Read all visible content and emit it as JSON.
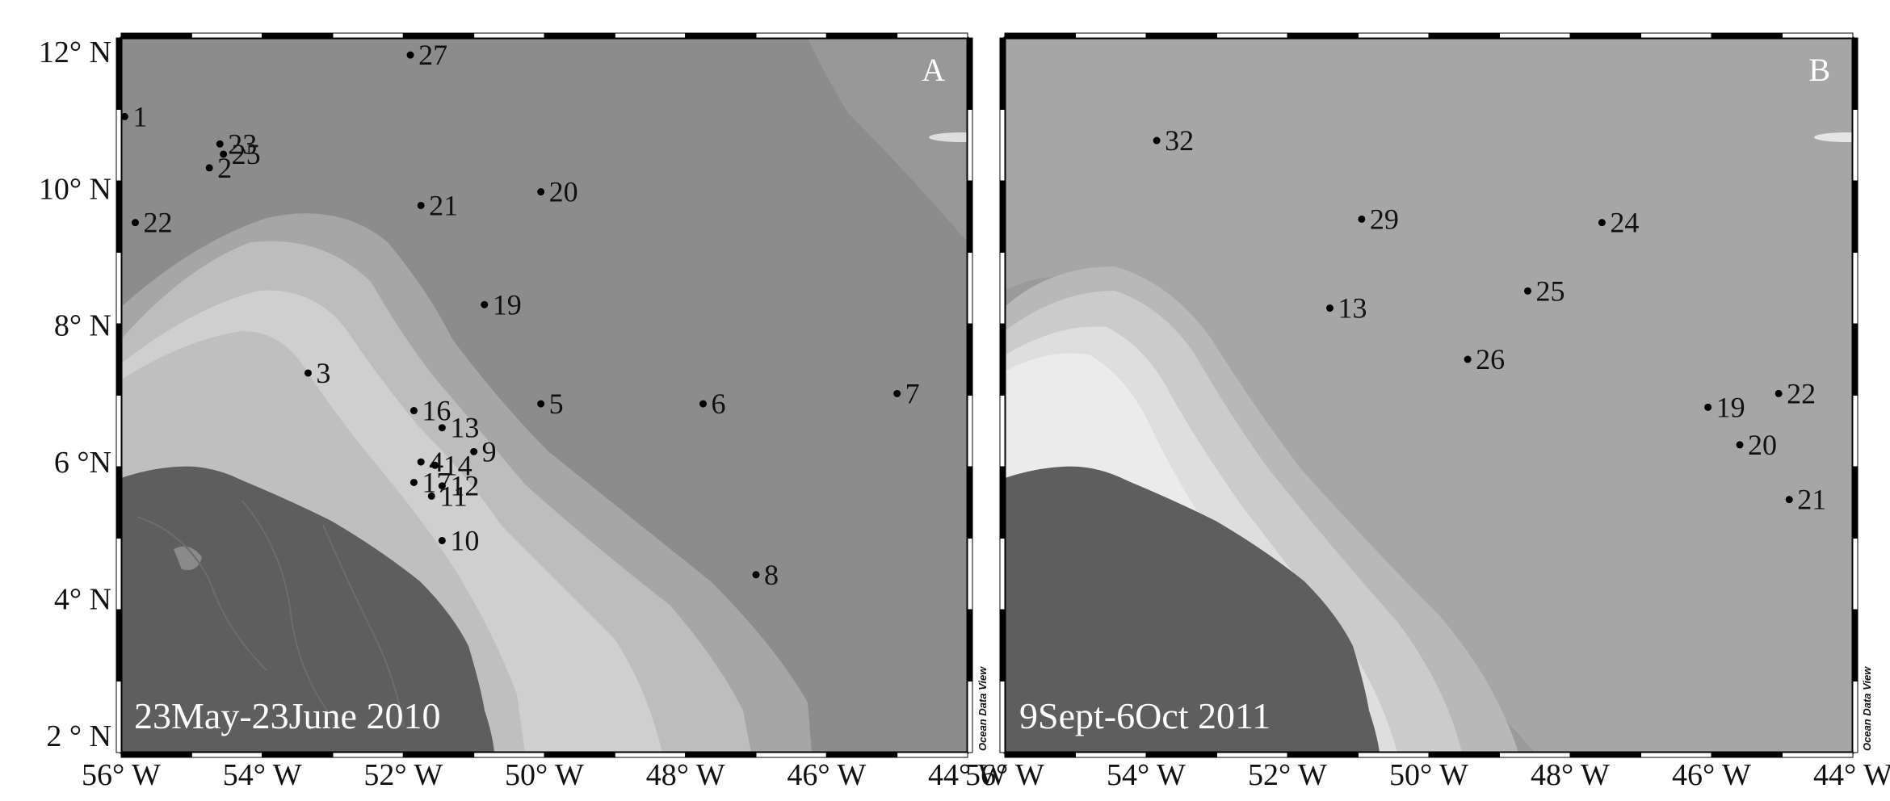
{
  "figure": {
    "x_ticks": [
      "56° W",
      "54° W",
      "52° W",
      "50° W",
      "48° W",
      "46° W",
      "44° W"
    ],
    "y_ticks": [
      "12° N",
      "10° N",
      "8° N",
      "6 °N",
      "4° N",
      "2 ° N"
    ],
    "watermark": "Ocean Data View"
  },
  "panels": [
    {
      "letter": "A",
      "date_label": "23May-23June 2010",
      "stations": [
        {
          "label": "1",
          "lon": -55.95,
          "lat": 11.05
        },
        {
          "label": "23",
          "lon": -54.6,
          "lat": 10.65
        },
        {
          "label": "25",
          "lon": -54.55,
          "lat": 10.5
        },
        {
          "label": "2",
          "lon": -54.75,
          "lat": 10.3
        },
        {
          "label": "22",
          "lon": -55.8,
          "lat": 9.5
        },
        {
          "label": "27",
          "lon": -51.9,
          "lat": 11.95
        },
        {
          "label": "21",
          "lon": -51.75,
          "lat": 9.75
        },
        {
          "label": "20",
          "lon": -50.05,
          "lat": 9.95
        },
        {
          "label": "19",
          "lon": -50.85,
          "lat": 8.3
        },
        {
          "label": "3",
          "lon": -53.35,
          "lat": 7.3
        },
        {
          "label": "16",
          "lon": -51.85,
          "lat": 6.75
        },
        {
          "label": "13",
          "lon": -51.45,
          "lat": 6.5
        },
        {
          "label": "5",
          "lon": -50.05,
          "lat": 6.85
        },
        {
          "label": "6",
          "lon": -47.75,
          "lat": 6.85
        },
        {
          "label": "7",
          "lon": -45.0,
          "lat": 7.0
        },
        {
          "label": "4",
          "lon": -51.75,
          "lat": 6.0
        },
        {
          "label": "14",
          "lon": -51.55,
          "lat": 5.95
        },
        {
          "label": "9",
          "lon": -51.0,
          "lat": 6.15
        },
        {
          "label": "17",
          "lon": -51.85,
          "lat": 5.7
        },
        {
          "label": "12",
          "lon": -51.45,
          "lat": 5.65
        },
        {
          "label": "11",
          "lon": -51.6,
          "lat": 5.5
        },
        {
          "label": "10",
          "lon": -51.45,
          "lat": 4.85
        },
        {
          "label": "8",
          "lon": -47.0,
          "lat": 4.35
        }
      ]
    },
    {
      "letter": "B",
      "date_label": "9Sept-6Oct 2011",
      "stations": [
        {
          "label": "32",
          "lon": -53.85,
          "lat": 10.7
        },
        {
          "label": "29",
          "lon": -50.95,
          "lat": 9.55
        },
        {
          "label": "24",
          "lon": -47.55,
          "lat": 9.5
        },
        {
          "label": "25",
          "lon": -48.6,
          "lat": 8.5
        },
        {
          "label": "13",
          "lon": -51.4,
          "lat": 8.25
        },
        {
          "label": "26",
          "lon": -49.45,
          "lat": 7.5
        },
        {
          "label": "19",
          "lon": -46.05,
          "lat": 6.8
        },
        {
          "label": "22",
          "lon": -45.05,
          "lat": 7.0
        },
        {
          "label": "20",
          "lon": -45.6,
          "lat": 6.25
        },
        {
          "label": "21",
          "lon": -44.9,
          "lat": 5.45
        }
      ]
    }
  ],
  "colors": {
    "land": "#5e5e5e",
    "deep_ocean": "#8c8c8c",
    "mid_ocean": "#a6a6a6",
    "slope": "#bdbdbd",
    "shelf": "#d8d8d8",
    "inner_shelf": "#e8e8e8"
  }
}
